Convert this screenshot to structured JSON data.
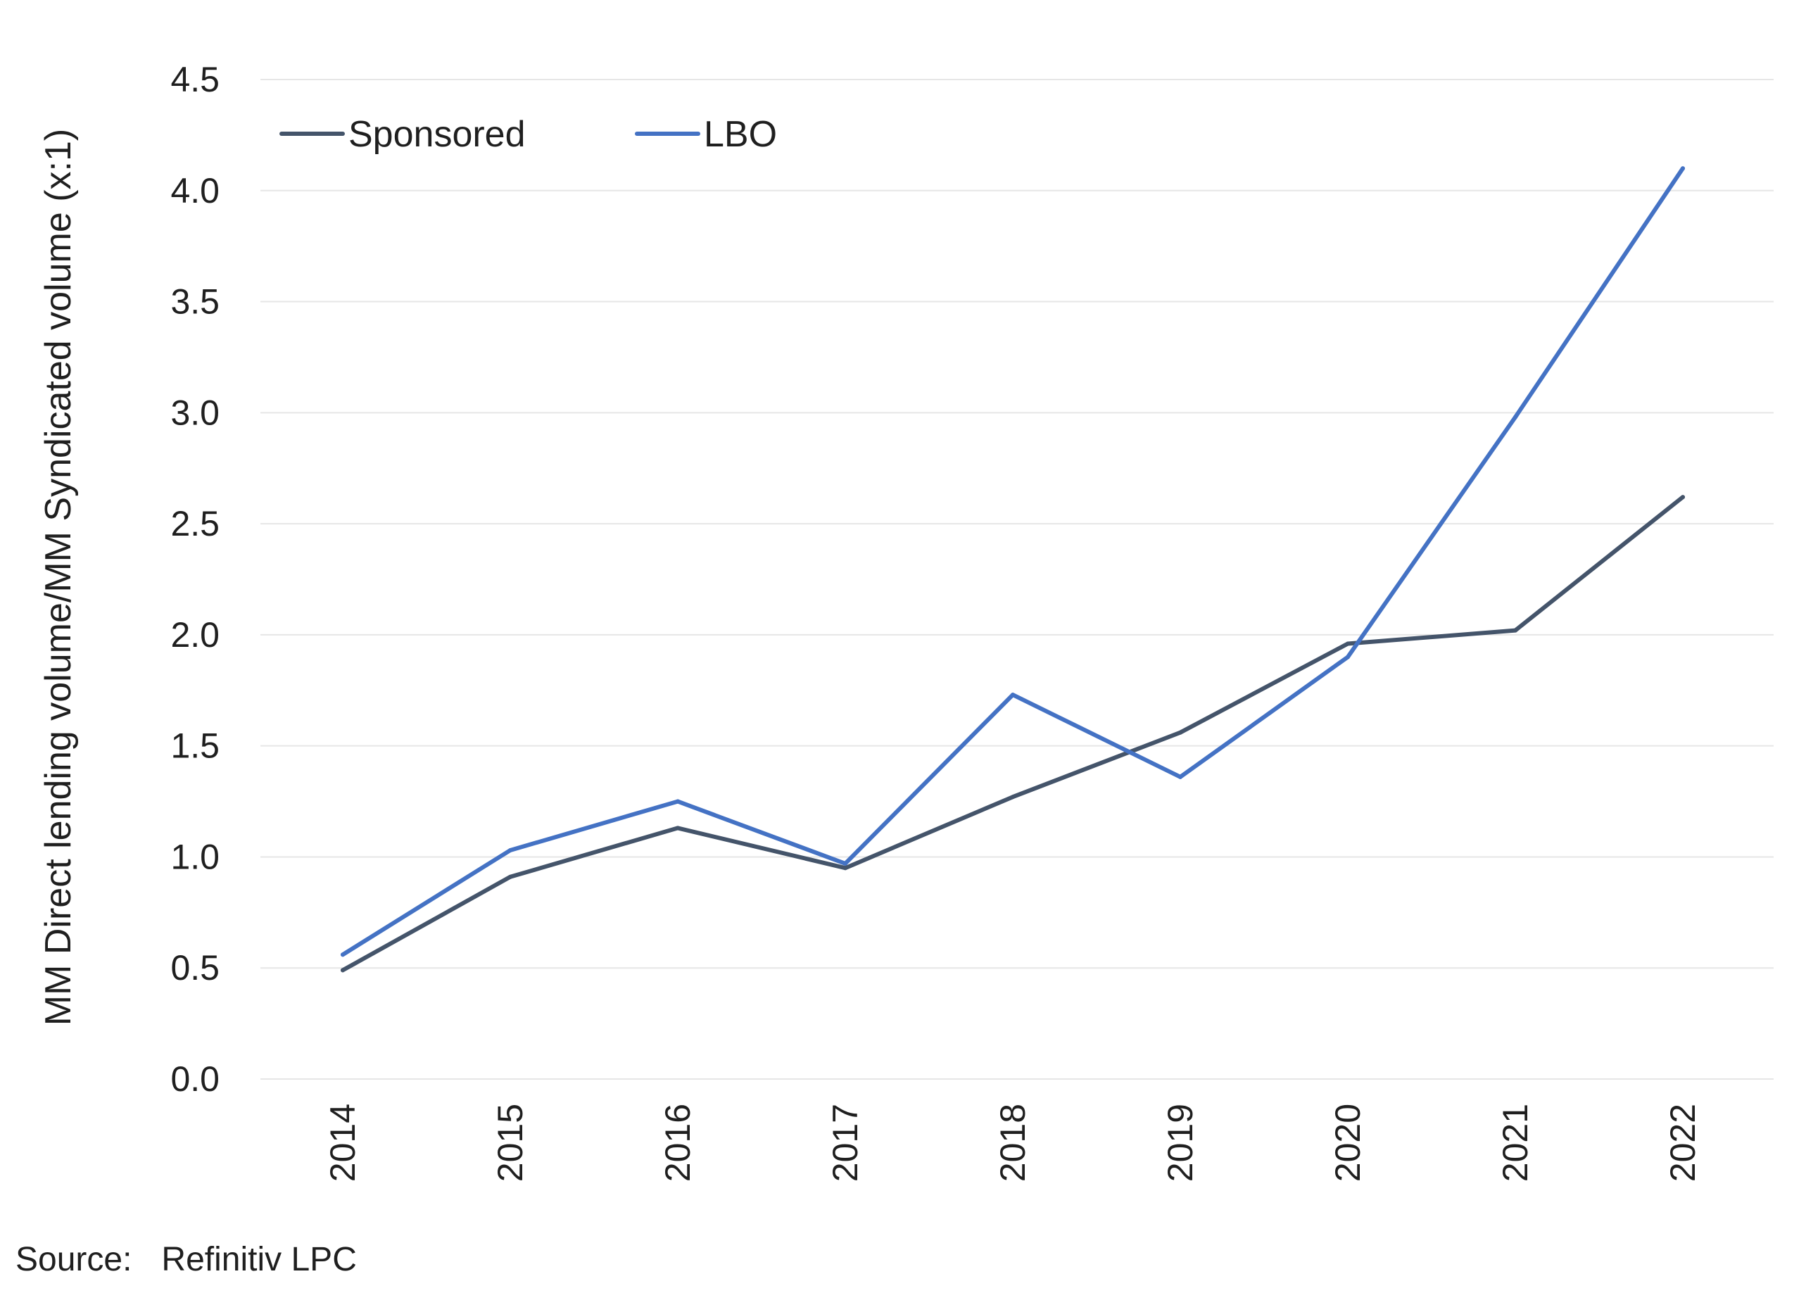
{
  "chart_data": {
    "type": "line",
    "categories": [
      "2014",
      "2015",
      "2016",
      "2017",
      "2018",
      "2019",
      "2020",
      "2021",
      "2022"
    ],
    "ylabel": "MM Direct lending volume/MM Syndicated volume (x:1)",
    "xlabel": "",
    "title": "",
    "ylim": [
      0,
      4.5
    ],
    "yticks": [
      "0.0",
      "0.5",
      "1.0",
      "1.5",
      "2.0",
      "2.5",
      "3.0",
      "3.5",
      "4.0",
      "4.5"
    ],
    "grid": true,
    "legend_position": "top-left",
    "series": [
      {
        "name": "Sponsored",
        "color": "#44546a",
        "values": [
          0.49,
          0.91,
          1.13,
          0.95,
          1.27,
          1.56,
          1.96,
          2.02,
          2.62
        ]
      },
      {
        "name": "LBO",
        "color": "#4472c4",
        "values": [
          0.56,
          1.03,
          1.25,
          0.97,
          1.73,
          1.36,
          1.9,
          2.98,
          4.1
        ]
      }
    ]
  },
  "source": {
    "label": "Source:",
    "text": "Refinitiv LPC"
  }
}
